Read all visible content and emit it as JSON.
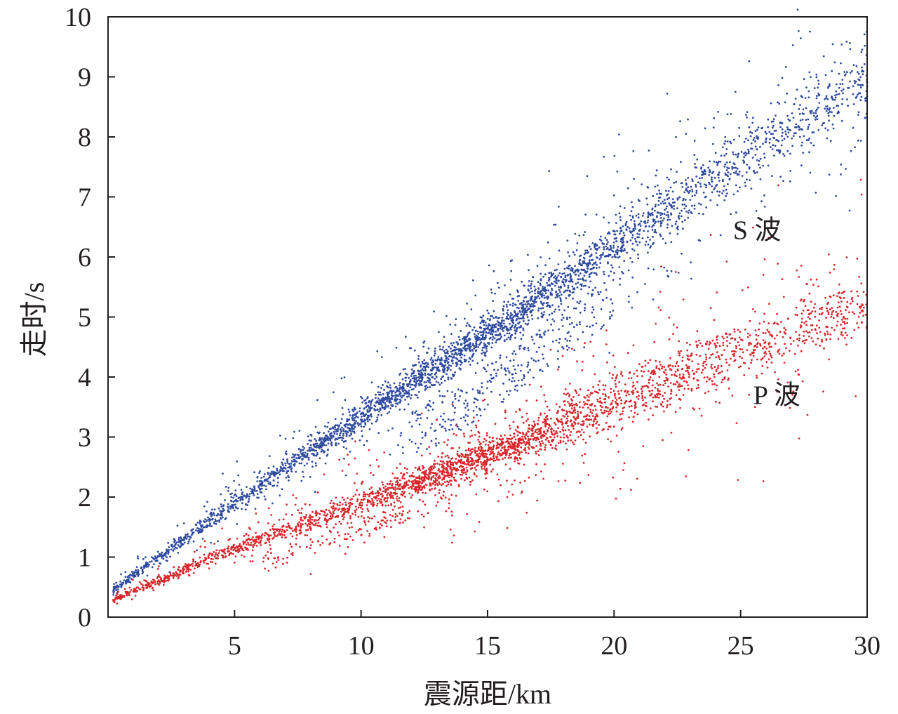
{
  "chart_data": {
    "type": "scatter",
    "xlabel": "震源距/km",
    "ylabel": "走时/s",
    "xlim": [
      0,
      30
    ],
    "ylim": [
      0,
      10
    ],
    "xticks": [
      5,
      10,
      15,
      20,
      25,
      30
    ],
    "yticks": [
      0,
      1,
      2,
      3,
      4,
      5,
      6,
      7,
      8,
      9,
      10
    ],
    "grid": false,
    "legend": "none",
    "series": [
      {
        "name": "S 波",
        "color": "#2e4a9e",
        "trend": [
          {
            "x": 0.2,
            "y": 0.45
          },
          {
            "x": 5,
            "y": 1.9
          },
          {
            "x": 10,
            "y": 3.35
          },
          {
            "x": 15,
            "y": 4.7
          },
          {
            "x": 20,
            "y": 6.2
          },
          {
            "x": 25,
            "y": 7.6
          },
          {
            "x": 30,
            "y": 9.0
          }
        ],
        "x_range": [
          0.2,
          30
        ],
        "label_position": {
          "x": 24.7,
          "y": 6.3
        }
      },
      {
        "name": "P 波",
        "color": "#d8262b",
        "trend": [
          {
            "x": 0.2,
            "y": 0.28
          },
          {
            "x": 5,
            "y": 1.15
          },
          {
            "x": 10,
            "y": 1.9
          },
          {
            "x": 15,
            "y": 2.7
          },
          {
            "x": 20,
            "y": 3.55
          },
          {
            "x": 25,
            "y": 4.4
          },
          {
            "x": 30,
            "y": 5.2
          }
        ],
        "x_range": [
          0.2,
          30
        ],
        "label_position": {
          "x": 25.5,
          "y": 3.55
        }
      }
    ]
  }
}
